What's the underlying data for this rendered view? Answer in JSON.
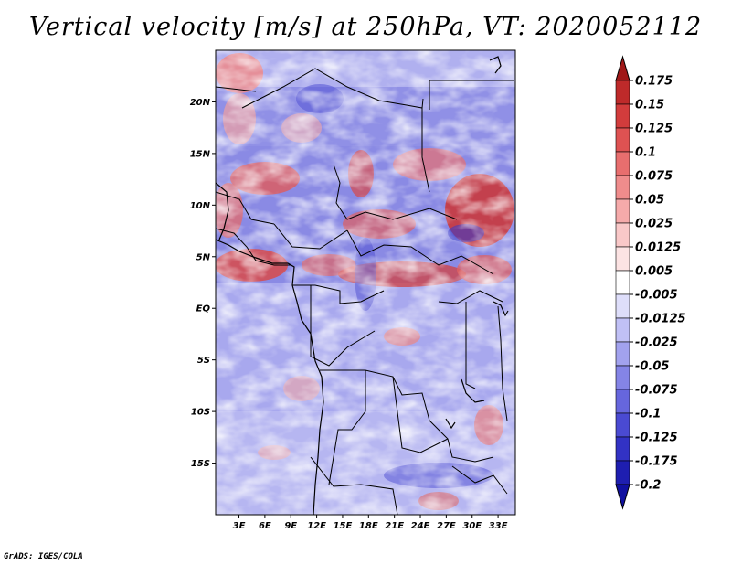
{
  "title": "Vertical velocity [m/s] at 250hPa, VT: 2020052112",
  "credit": "GrADS: IGES/COLA",
  "map": {
    "lat_labels": [
      {
        "text": "20N",
        "lat": 20
      },
      {
        "text": "15N",
        "lat": 15
      },
      {
        "text": "10N",
        "lat": 10
      },
      {
        "text": "5N",
        "lat": 5
      },
      {
        "text": "EQ",
        "lat": 0
      },
      {
        "text": "5S",
        "lat": -5
      },
      {
        "text": "10S",
        "lat": -10
      },
      {
        "text": "15S",
        "lat": -15
      }
    ],
    "lon_labels": [
      {
        "text": "3E",
        "lon": 3
      },
      {
        "text": "6E",
        "lon": 6
      },
      {
        "text": "9E",
        "lon": 9
      },
      {
        "text": "12E",
        "lon": 12
      },
      {
        "text": "15E",
        "lon": 15
      },
      {
        "text": "18E",
        "lon": 18
      },
      {
        "text": "21E",
        "lon": 21
      },
      {
        "text": "24E",
        "lon": 24
      },
      {
        "text": "27E",
        "lon": 27
      },
      {
        "text": "30E",
        "lon": 30
      },
      {
        "text": "33E",
        "lon": 33
      }
    ],
    "lon_range": [
      0.3,
      35
    ],
    "lat_range": [
      -20,
      25
    ]
  },
  "colorbar": {
    "levels": [
      "0.175",
      "0.15",
      "0.125",
      "0.1",
      "0.075",
      "0.05",
      "0.025",
      "0.0125",
      "0.005",
      "-0.005",
      "-0.0125",
      "-0.025",
      "-0.05",
      "-0.075",
      "-0.1",
      "-0.125",
      "-0.175",
      "-0.2"
    ],
    "colors": [
      "#a01818",
      "#be2a2a",
      "#d23c3c",
      "#de5252",
      "#e86e6e",
      "#ef8c8c",
      "#f5aaaa",
      "#f9c8c8",
      "#fce3e3",
      "#ffffff",
      "#dedefa",
      "#c0c0f5",
      "#a2a2ee",
      "#8484e6",
      "#6666dd",
      "#4a4ad2",
      "#3232c4",
      "#1e1eb0",
      "#1010a0"
    ]
  }
}
